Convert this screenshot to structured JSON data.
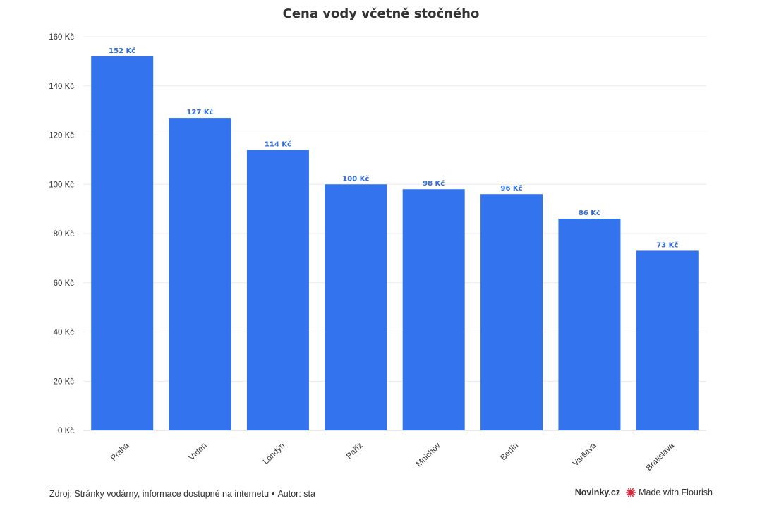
{
  "chart_data": {
    "type": "bar",
    "title": "Cena vody včetně stočného",
    "categories": [
      "Praha",
      "Vídeň",
      "Londýn",
      "Paříž",
      "Mnichov",
      "Berlín",
      "Varšava",
      "Bratislava"
    ],
    "values": [
      152,
      127,
      114,
      100,
      98,
      96,
      86,
      73
    ],
    "value_labels": [
      "152 Kč",
      "127 Kč",
      "114 Kč",
      "100 Kč",
      "98 Kč",
      "96 Kč",
      "86 Kč",
      "73 Kč"
    ],
    "y_ticks": [
      0,
      20,
      40,
      60,
      80,
      100,
      120,
      140,
      160
    ],
    "y_tick_labels": [
      "0 Kč",
      "20 Kč",
      "40 Kč",
      "60 Kč",
      "80 Kč",
      "100 Kč",
      "120 Kč",
      "140 Kč",
      "160 Kč"
    ],
    "ylim": [
      0,
      160
    ],
    "xlabel": "",
    "ylabel": "",
    "grid": true,
    "legend": "none",
    "bar_color": "#3374EE",
    "label_color": "#2F6BDB"
  },
  "footer": {
    "source_text": "Zdroj: Stránky vodárny, informace dostupné na internetu",
    "separator": "•",
    "author_text": "Autor: sta",
    "publisher": "Novinky.cz",
    "made_with": "Made with Flourish",
    "flourish_icon": "flourish-burst-icon",
    "flourish_color": "#D6283B"
  }
}
